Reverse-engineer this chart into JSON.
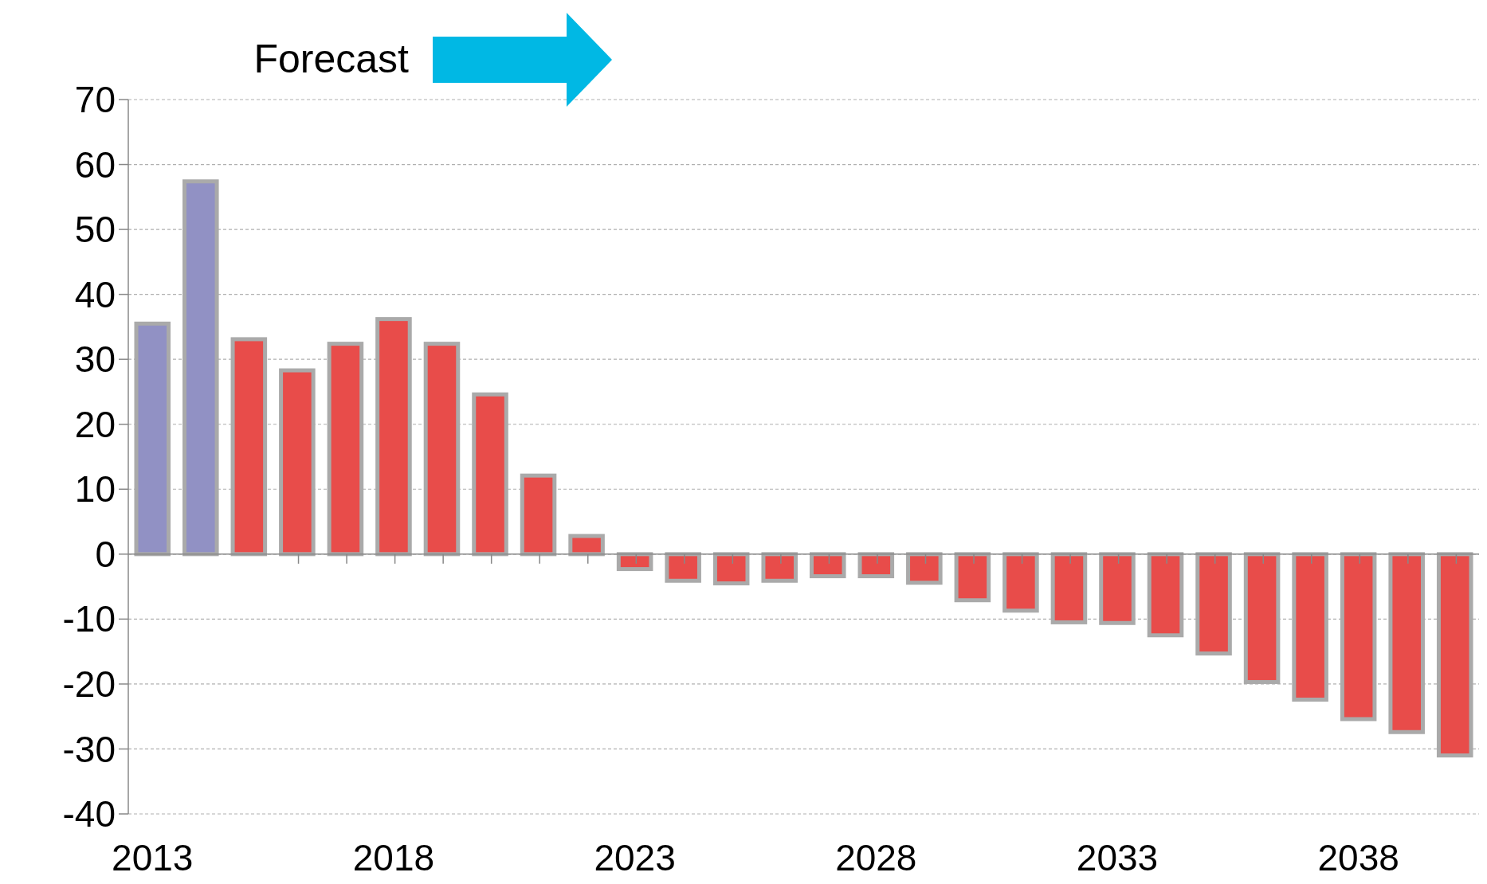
{
  "chart_data": {
    "type": "bar",
    "categories": [
      "2013",
      null,
      null,
      null,
      null,
      "2018",
      null,
      null,
      null,
      null,
      "2023",
      null,
      null,
      null,
      null,
      "2028",
      null,
      null,
      null,
      null,
      "2033",
      null,
      null,
      null,
      null,
      "2038",
      null,
      null
    ],
    "values": [
      35.5,
      57.4,
      33.1,
      28.3,
      32.4,
      36.2,
      32.4,
      24.6,
      12.1,
      2.8,
      -2.3,
      -4.1,
      -4.5,
      -4.1,
      -3.4,
      -3.4,
      -4.4,
      -7.1,
      -8.7,
      -10.5,
      -10.6,
      -12.5,
      -15.3,
      -19.7,
      -22.4,
      -25.4,
      -27.4,
      -31.0
    ],
    "colors": [
      "#9191c4",
      "#9191c4",
      "#e84c4a",
      "#e84c4a",
      "#e84c4a",
      "#e84c4a",
      "#e84c4a",
      "#e84c4a",
      "#e84c4a",
      "#e84c4a",
      "#e84c4a",
      "#e84c4a",
      "#e84c4a",
      "#e84c4a",
      "#e84c4a",
      "#e84c4a",
      "#e84c4a",
      "#e84c4a",
      "#e84c4a",
      "#e84c4a",
      "#e84c4a",
      "#e84c4a",
      "#e84c4a",
      "#e84c4a",
      "#e84c4a",
      "#e84c4a",
      "#e84c4a",
      "#e84c4a"
    ],
    "ylim": [
      -40,
      70
    ],
    "yticks": [
      -40,
      -30,
      -20,
      -10,
      0,
      10,
      20,
      30,
      40,
      50,
      60,
      70
    ],
    "grid": "y",
    "annotations": [
      "Forecast"
    ]
  }
}
